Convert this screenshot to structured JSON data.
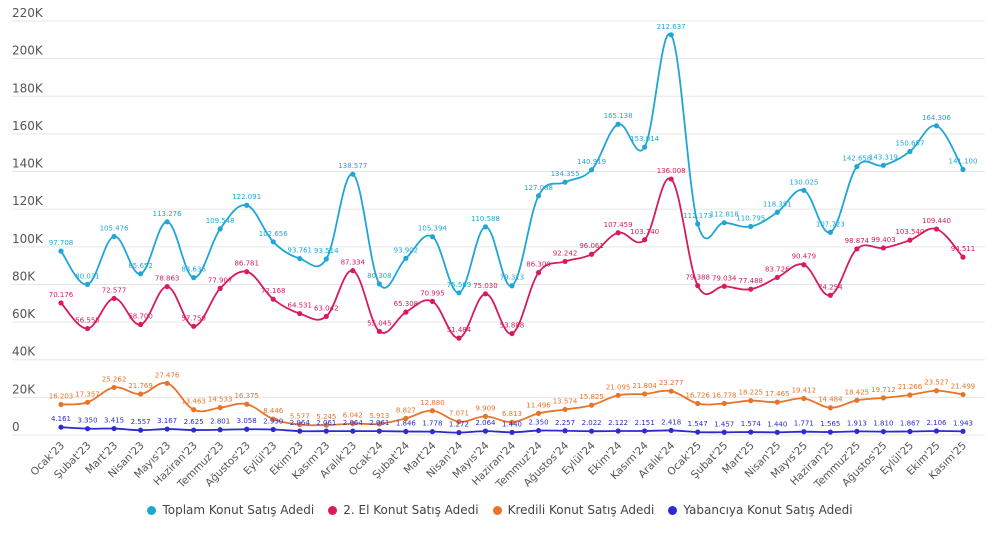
{
  "chart_data": {
    "type": "line",
    "y_ticks": [
      "0",
      "20K",
      "40K",
      "60K",
      "80K",
      "100K",
      "120K",
      "140K",
      "160K",
      "180K",
      "200K",
      "220K"
    ],
    "ylim": [
      0,
      220000
    ],
    "grid": true,
    "legend_position": "bottom",
    "categories": [
      "Ocak'23",
      "Şubat'23",
      "Mart'23",
      "Nisan'23",
      "Mayıs'23",
      "Haziran'23",
      "Temmuz'23",
      "Ağustos'23",
      "Eylül'23",
      "Ekim'23",
      "Kasım'23",
      "Aralık'23",
      "Ocak'24",
      "Şubat'24",
      "Mart'24",
      "Nisan'24",
      "Mayıs'24",
      "Haziran'24",
      "Temmuz'24",
      "Ağustos'24",
      "Eylül'24",
      "Ekim'24",
      "Kasım'24",
      "Aralık'24",
      "Ocak'25",
      "Şubat'25",
      "Mart'25",
      "Nisan'25",
      "Mayıs'25",
      "Haziran'25",
      "Temmuz'25",
      "Ağustos'25",
      "Eylül'25",
      "Ekim'25",
      "Kasım'25"
    ],
    "series": [
      {
        "name": "Toplam Konut Satış Adedi",
        "color": "#1ea7d6",
        "values": [
          97708,
          80031,
          105476,
          85652,
          113276,
          83636,
          109548,
          122091,
          102656,
          93761,
          93514,
          138577,
          80308,
          93902,
          105394,
          75569,
          110588,
          79313,
          127088,
          134355,
          140919,
          165138,
          153014,
          212637,
          112173,
          112818,
          110795,
          118351,
          130025,
          107723,
          142658,
          143319,
          150657,
          164306,
          141100
        ],
        "labels": [
          "97.708",
          "80.031",
          "105.476",
          "85.652",
          "113.276",
          "83.636",
          "109.548",
          "122.091",
          "102.656",
          "93.761",
          "93.514",
          "138.577",
          "80.308",
          "93.902",
          "105.394",
          "75.569",
          "110.588",
          "79.313",
          "127.088",
          "134.355",
          "140.919",
          "165.138",
          "153.014",
          "212.637",
          "112.173",
          "112.818",
          "110.795",
          "118.351",
          "130.025",
          "107.723",
          "142.658",
          "143.319",
          "150.657",
          "164.306",
          "141.100"
        ]
      },
      {
        "name": "2. El Konut Satış Adedi",
        "color": "#d81b5b",
        "values": [
          70176,
          56555,
          72577,
          58700,
          78863,
          57750,
          77907,
          86781,
          72168,
          64531,
          63042,
          87334,
          55045,
          65308,
          70995,
          51484,
          75030,
          53888,
          86300,
          92242,
          96061,
          107459,
          103740,
          136008,
          79388,
          79034,
          77488,
          83726,
          90479,
          74254,
          98874,
          99403,
          103540,
          109440,
          94511
        ],
        "labels": [
          "70.176",
          "56.555",
          "72.577",
          "58.700",
          "78.863",
          "57.750",
          "77.907",
          "86.781",
          "72.168",
          "64.531",
          "63.042",
          "87.334",
          "55.045",
          "65.308",
          "70.995",
          "51.484",
          "75.030",
          "53.888",
          "86.300",
          "92.242",
          "96.061",
          "107.459",
          "103.740",
          "136.008",
          "79.388",
          "79.034",
          "77.488",
          "83.726",
          "90.479",
          "74.254",
          "98.874",
          "99.403",
          "103.540",
          "109.440",
          "94.511"
        ]
      },
      {
        "name": "Kredili Konut Satış Adedi",
        "color": "#e8742a",
        "values": [
          16203,
          17357,
          25262,
          21769,
          27476,
          13463,
          14533,
          16375,
          8446,
          5577,
          5245,
          6042,
          5913,
          8827,
          12880,
          7071,
          9909,
          6813,
          11496,
          13574,
          15825,
          21095,
          21804,
          23277,
          16726,
          16778,
          18225,
          17465,
          19412,
          14484,
          18425,
          19712,
          21266,
          23527,
          21499
        ],
        "labels": [
          "16.203",
          "17.357",
          "25.262",
          "21.769",
          "27.476",
          "13.463",
          "14.533",
          "16.375",
          "8.446",
          "5.577",
          "5.245",
          "6.042",
          "5.913",
          "8.827",
          "12.880",
          "7.071",
          "9.909",
          "6.813",
          "11.496",
          "13.574",
          "15.825",
          "21.095",
          "21.804",
          "23.277",
          "16.726",
          "16.778",
          "18.225",
          "17.465",
          "19.412",
          "14.484",
          "18.425",
          "19.712",
          "21.266",
          "23.527",
          "21.499"
        ]
      },
      {
        "name": "Yabancıya Konut Satış Adedi",
        "color": "#2d2bd0",
        "values": [
          4161,
          3350,
          3415,
          2557,
          3167,
          2625,
          2801,
          3058,
          2930,
          2064,
          2061,
          2064,
          2061,
          1846,
          1778,
          1272,
          2064,
          1440,
          2350,
          2257,
          2022,
          2122,
          2151,
          2418,
          1547,
          1457,
          1574,
          1440,
          1771,
          1565,
          1913,
          1810,
          1867,
          2106,
          1943
        ],
        "labels": [
          "4.161",
          "3.350",
          "3.415",
          "2.557",
          "3.167",
          "2.625",
          "2.801",
          "3.058",
          "2.930",
          "2.064",
          "2.061",
          "2.064",
          "2.061",
          "1.846",
          "1.778",
          "1.272",
          "2.064",
          "1.440",
          "2.350",
          "2.257",
          "2.022",
          "2.122",
          "2.151",
          "2.418",
          "1.547",
          "1.457",
          "1.574",
          "1.440",
          "1.771",
          "1.565",
          "1.913",
          "1.810",
          "1.867",
          "2.106",
          "1.943"
        ]
      }
    ]
  }
}
